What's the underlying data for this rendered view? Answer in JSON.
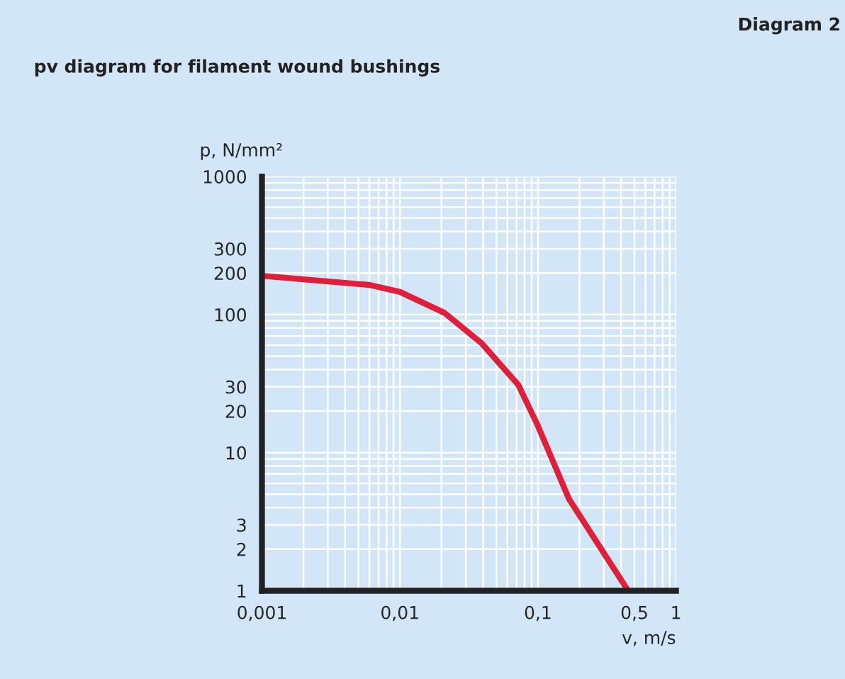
{
  "chart_data": {
    "type": "line",
    "title": "pv diagram for filament wound bushings",
    "annotations": [
      "Diagram 2"
    ],
    "xlabel": "v, m/s",
    "ylabel": "p, N/mm²",
    "log": "xy",
    "x": [
      0.001,
      0.006,
      0.01,
      0.021,
      0.039,
      0.072,
      0.1,
      0.168,
      0.45
    ],
    "series": [
      {
        "color": "#e0203a",
        "values": [
          191,
          164,
          146,
          103,
          62,
          31,
          15.6,
          4.6,
          1
        ]
      }
    ],
    "xlim": [
      0.001,
      1
    ],
    "ylim": [
      1,
      1000
    ],
    "xticks": [
      {
        "value": 0.001,
        "label": "0,001"
      },
      {
        "value": 0.01,
        "label": "0,01"
      },
      {
        "value": 0.1,
        "label": "0,1"
      },
      {
        "value": 0.5,
        "label": "0,5"
      },
      1
    ],
    "yticks": [
      1,
      2,
      3,
      10,
      20,
      30,
      100,
      200,
      300,
      1000
    ],
    "grid": true,
    "legend": false
  }
}
